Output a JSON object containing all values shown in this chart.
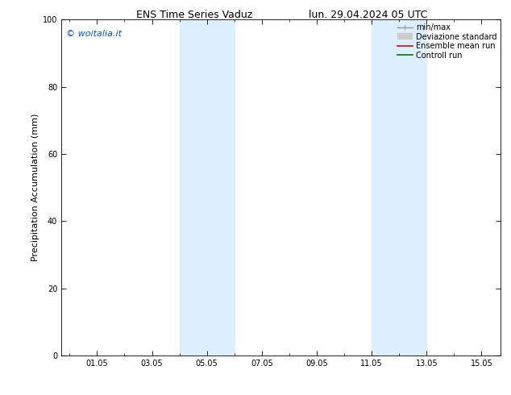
{
  "title_left": "ENS Time Series Vaduz",
  "title_right": "lun. 29.04.2024 05 UTC",
  "ylabel": "Precipitation Accumulation (mm)",
  "ylim": [
    0,
    100
  ],
  "yticks": [
    0,
    20,
    40,
    60,
    80,
    100
  ],
  "xtick_labels": [
    "01.05",
    "03.05",
    "05.05",
    "07.05",
    "09.05",
    "11.05",
    "13.05",
    "15.05"
  ],
  "xtick_positions": [
    1.0,
    3.0,
    5.0,
    7.0,
    9.0,
    11.0,
    13.0,
    15.0
  ],
  "xlim_left": -0.3,
  "xlim_right": 15.7,
  "background_color": "#ffffff",
  "plot_bg_color": "#ffffff",
  "shaded_bands": [
    {
      "x_start": 4.0,
      "x_end": 6.0,
      "color": "#ddeeff"
    },
    {
      "x_start": 11.0,
      "x_end": 13.0,
      "color": "#ddeeff"
    }
  ],
  "watermark_text": "© woitalia.it",
  "watermark_color": "#0055cc",
  "legend_items": [
    {
      "label": "min/max",
      "type": "line",
      "color": "#999999",
      "lw": 1.0
    },
    {
      "label": "Deviazione standard",
      "type": "band",
      "color": "#cccccc"
    },
    {
      "label": "Ensemble mean run",
      "type": "line",
      "color": "#dd0000",
      "lw": 1.2
    },
    {
      "label": "Controll run",
      "type": "line",
      "color": "#007700",
      "lw": 1.2
    }
  ],
  "title_fontsize": 9,
  "tick_fontsize": 7,
  "ylabel_fontsize": 8,
  "watermark_fontsize": 8,
  "legend_fontsize": 7
}
